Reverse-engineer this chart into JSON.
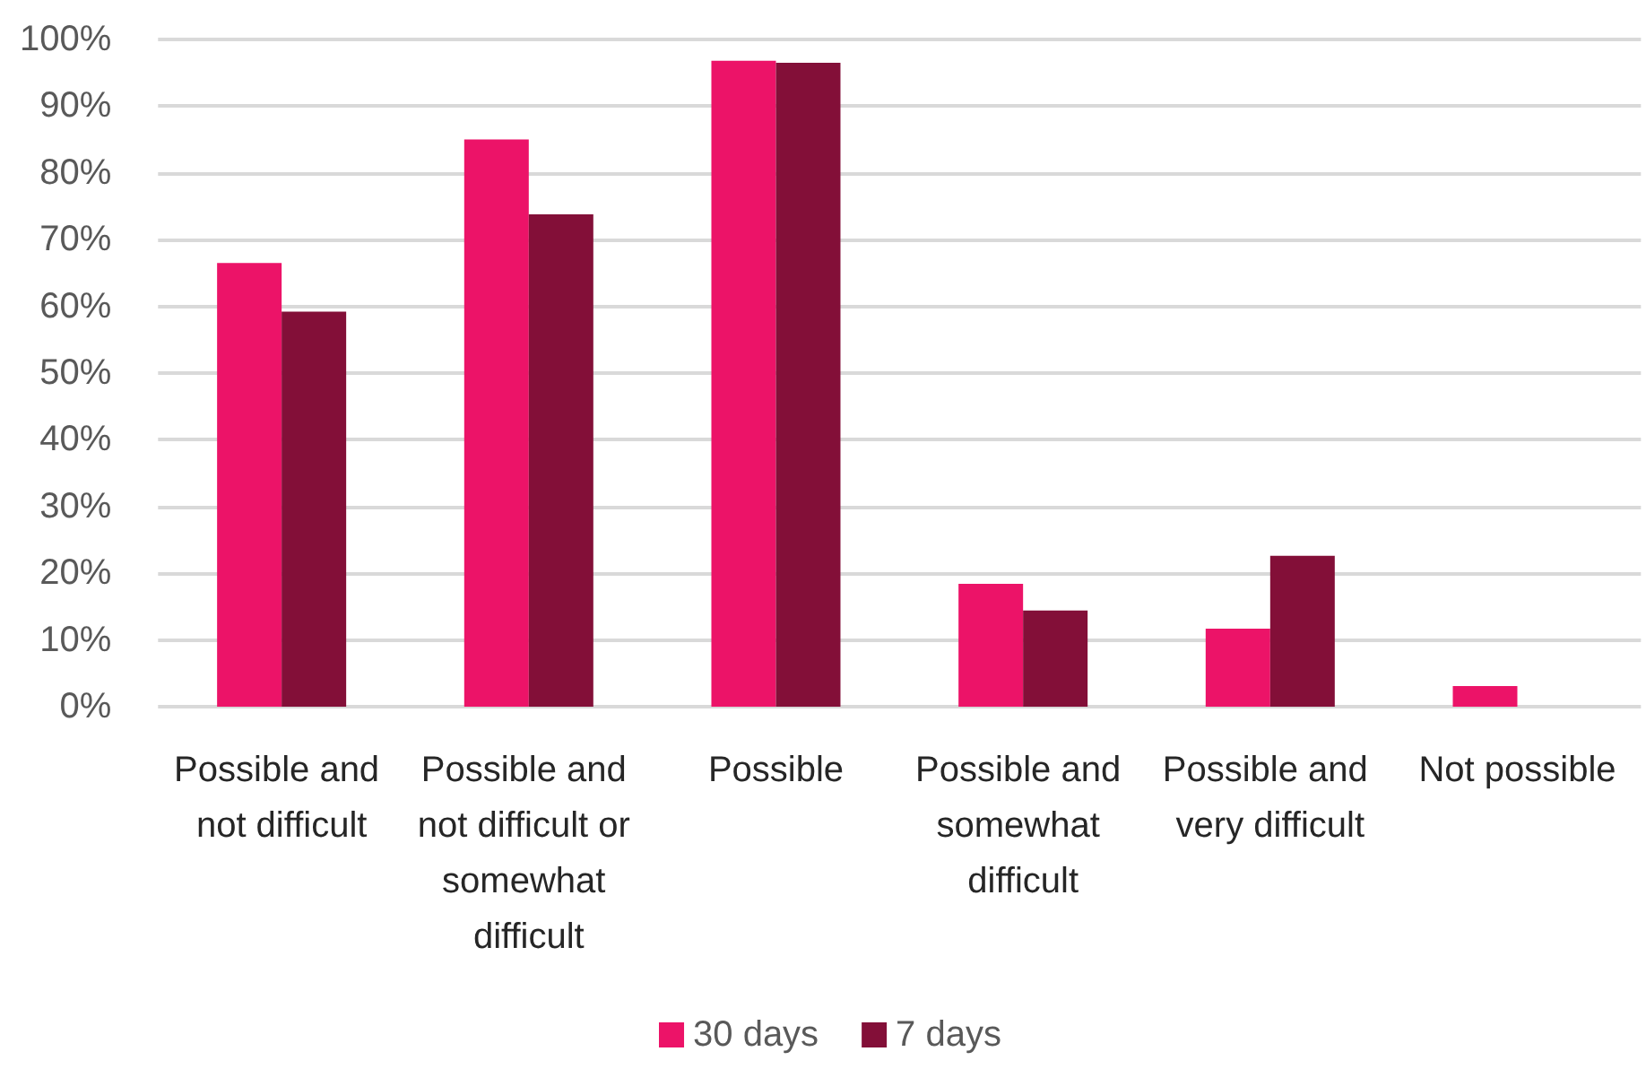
{
  "chart_data": {
    "type": "bar",
    "categories": [
      "Possible and not difficult",
      "Possible and not difficult or somewhat difficult",
      "Possible",
      "Possible and somewhat difficult",
      "Possible and very difficult",
      "Not possible"
    ],
    "series": [
      {
        "name": "30 days",
        "color": "#ec1368",
        "values": [
          66.5,
          85.0,
          96.8,
          18.4,
          11.7,
          3.1
        ]
      },
      {
        "name": "7 days",
        "color": "#830f38",
        "values": [
          59.2,
          73.8,
          96.5,
          14.4,
          22.6,
          null
        ]
      }
    ],
    "ylim": [
      0,
      100
    ],
    "yticks": [
      {
        "value": 0,
        "label": "0%"
      },
      {
        "value": 10,
        "label": "10%"
      },
      {
        "value": 20,
        "label": "20%"
      },
      {
        "value": 30,
        "label": "30%"
      },
      {
        "value": 40,
        "label": "40%"
      },
      {
        "value": 50,
        "label": "50%"
      },
      {
        "value": 60,
        "label": "60%"
      },
      {
        "value": 70,
        "label": "70%"
      },
      {
        "value": 80,
        "label": "80%"
      },
      {
        "value": 90,
        "label": "90%"
      },
      {
        "value": 100,
        "label": "100%"
      }
    ],
    "grid": "y",
    "legend": "bottom"
  }
}
